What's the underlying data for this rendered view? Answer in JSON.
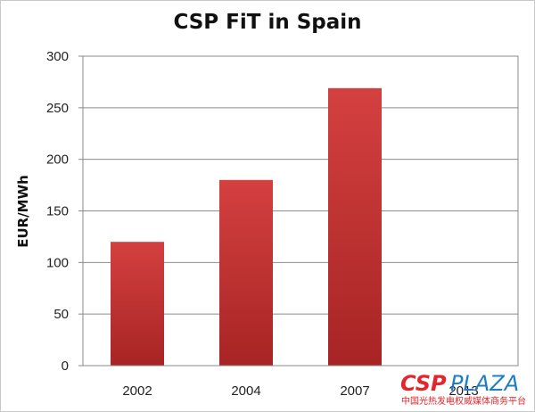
{
  "chart_data": {
    "type": "bar",
    "title": "CSP FiT in Spain",
    "ylabel": "EUR/MWh",
    "xlabel": "",
    "categories": [
      "2002",
      "2004",
      "2007",
      "2013"
    ],
    "values": [
      120,
      180,
      269,
      null
    ],
    "ylim": [
      0,
      300
    ],
    "yticks": [
      0,
      50,
      100,
      150,
      200,
      250,
      300
    ],
    "grid": true,
    "legend": "none",
    "bar_color": "#c53232"
  },
  "watermark": {
    "brand_csp": "CSP",
    "brand_plaza": "PLAZA",
    "subtitle": "中国光热发电权威媒体商务平台"
  }
}
